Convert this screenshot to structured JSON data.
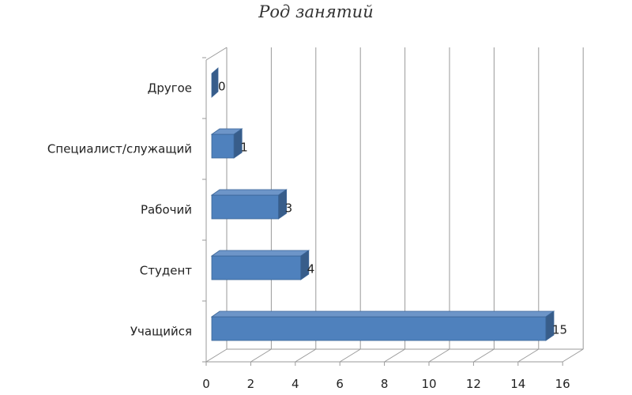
{
  "chart_data": {
    "type": "bar",
    "orientation": "horizontal",
    "style": "3d",
    "title": "Род занятий",
    "xlabel": "",
    "ylabel": "",
    "categories": [
      "Учащийся",
      "Студент",
      "Рабочий",
      "Специалист/служащий",
      "Другое"
    ],
    "values": [
      15,
      4,
      3,
      1,
      0
    ],
    "xlim": [
      0,
      16
    ],
    "x_ticks": [
      "0",
      "2",
      "4",
      "6",
      "8",
      "10",
      "12",
      "14",
      "16"
    ],
    "data_labels": [
      "15",
      "4",
      "3",
      "1",
      "0"
    ],
    "grid": true,
    "legend": "none",
    "colors": {
      "bar_front": "#4f81bd",
      "bar_top": "#6d95c8",
      "bar_side": "#385d8a",
      "bar_edge": "#3a6497"
    }
  }
}
